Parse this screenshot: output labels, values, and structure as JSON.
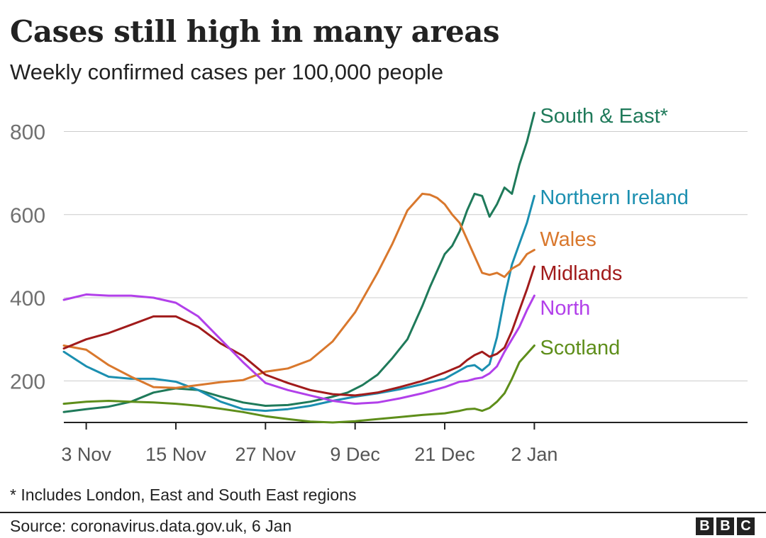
{
  "header": {
    "title": "Cases still high in many areas",
    "subtitle": "Weekly confirmed cases per 100,000 people"
  },
  "footer": {
    "footnote": "* Includes London, East and South East regions",
    "source": "Source: coronavirus.data.gov.uk, 6 Jan",
    "logo_letters": [
      "B",
      "B",
      "C"
    ]
  },
  "chart_data": {
    "type": "line",
    "title": "Cases still high in many areas",
    "subtitle": "Weekly confirmed cases per 100,000 people",
    "xlabel": "",
    "ylabel": "",
    "ylim": [
      100,
      870
    ],
    "yticks": [
      200,
      400,
      600,
      800
    ],
    "x_ticks": [
      {
        "day": 3,
        "label": "3 Nov"
      },
      {
        "day": 15,
        "label": "15 Nov"
      },
      {
        "day": 27,
        "label": "27 Nov"
      },
      {
        "day": 39,
        "label": "9 Dec"
      },
      {
        "day": 51,
        "label": "21 Dec"
      },
      {
        "day": 63,
        "label": "2 Jan"
      }
    ],
    "xlim": [
      0,
      92
    ],
    "grid": "horizontal",
    "legend": "direct labels at line ends",
    "x_unit": "days from 31 Oct",
    "series": [
      {
        "name": "South & East*",
        "color": "#1f7a5a",
        "x": [
          0,
          3,
          6,
          9,
          12,
          15,
          18,
          21,
          24,
          27,
          30,
          33,
          36,
          38,
          40,
          42,
          44,
          46,
          48,
          49,
          50,
          51,
          52,
          53,
          54,
          55,
          56,
          57,
          58,
          59,
          60,
          61,
          62,
          63
        ],
        "values": [
          125,
          132,
          138,
          150,
          172,
          182,
          178,
          162,
          148,
          140,
          142,
          150,
          162,
          172,
          190,
          215,
          255,
          300,
          380,
          425,
          465,
          505,
          525,
          560,
          610,
          650,
          645,
          595,
          625,
          665,
          650,
          720,
          775,
          845
        ]
      },
      {
        "name": "Northern Ireland",
        "color": "#1b8fb0",
        "x": [
          0,
          3,
          6,
          9,
          12,
          15,
          18,
          21,
          24,
          27,
          30,
          33,
          36,
          39,
          42,
          45,
          48,
          51,
          54,
          55,
          56,
          57,
          58,
          59,
          60,
          61,
          62,
          63
        ],
        "values": [
          270,
          235,
          210,
          205,
          205,
          198,
          178,
          150,
          132,
          128,
          132,
          140,
          152,
          162,
          170,
          180,
          192,
          205,
          235,
          238,
          225,
          240,
          305,
          400,
          480,
          530,
          580,
          645
        ]
      },
      {
        "name": "Wales",
        "color": "#d9782d",
        "x": [
          0,
          3,
          6,
          9,
          12,
          15,
          18,
          21,
          24,
          27,
          30,
          33,
          36,
          39,
          42,
          44,
          46,
          48,
          49,
          50,
          51,
          52,
          53,
          54,
          55,
          56,
          57,
          58,
          59,
          60,
          61,
          62,
          63
        ],
        "values": [
          285,
          275,
          238,
          210,
          185,
          183,
          190,
          197,
          202,
          222,
          230,
          250,
          295,
          365,
          460,
          530,
          610,
          650,
          648,
          640,
          625,
          600,
          580,
          540,
          500,
          460,
          455,
          460,
          450,
          470,
          480,
          505,
          515
        ]
      },
      {
        "name": "Midlands",
        "color": "#a11b1b",
        "x": [
          0,
          3,
          6,
          9,
          12,
          15,
          18,
          21,
          24,
          27,
          30,
          33,
          36,
          39,
          42,
          45,
          48,
          51,
          53,
          54,
          55,
          56,
          57,
          58,
          59,
          60,
          61,
          62,
          63
        ],
        "values": [
          278,
          300,
          315,
          335,
          355,
          355,
          330,
          290,
          260,
          215,
          195,
          178,
          168,
          165,
          172,
          185,
          200,
          220,
          235,
          250,
          262,
          270,
          258,
          265,
          280,
          320,
          370,
          420,
          475
        ]
      },
      {
        "name": "North",
        "color": "#b240ea",
        "x": [
          0,
          3,
          6,
          9,
          12,
          15,
          18,
          21,
          24,
          27,
          30,
          33,
          36,
          39,
          42,
          45,
          48,
          51,
          53,
          54,
          55,
          56,
          57,
          58,
          59,
          60,
          61,
          62,
          63
        ],
        "values": [
          395,
          408,
          405,
          405,
          400,
          388,
          355,
          300,
          245,
          195,
          178,
          165,
          152,
          145,
          148,
          158,
          170,
          185,
          198,
          200,
          205,
          208,
          218,
          235,
          270,
          300,
          330,
          370,
          405
        ]
      },
      {
        "name": "Scotland",
        "color": "#5e8e1a",
        "x": [
          0,
          3,
          6,
          9,
          12,
          15,
          18,
          21,
          24,
          27,
          30,
          33,
          36,
          39,
          42,
          45,
          48,
          51,
          53,
          54,
          55,
          56,
          57,
          58,
          59,
          60,
          61,
          62,
          63
        ],
        "values": [
          145,
          150,
          152,
          150,
          148,
          145,
          140,
          133,
          125,
          115,
          108,
          102,
          100,
          103,
          108,
          113,
          118,
          122,
          128,
          132,
          133,
          128,
          135,
          150,
          170,
          205,
          245,
          265,
          285
        ]
      }
    ]
  }
}
